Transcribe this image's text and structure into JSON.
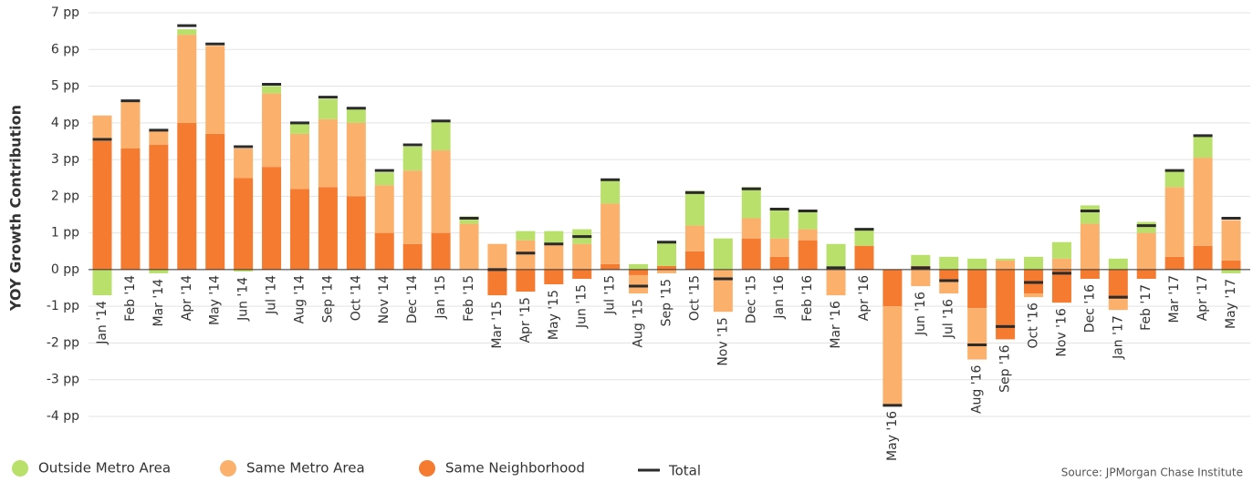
{
  "chart_data": {
    "type": "stacked-bar",
    "y_label": "YOY Growth Contribution",
    "source": "Source:  JPMorgan Chase Institute",
    "categories": [
      "Jan '14",
      "Feb '14",
      "Mar '14",
      "Apr '14",
      "May '14",
      "Jun '14",
      "Jul '14",
      "Aug '14",
      "Sep '14",
      "Oct '14",
      "Nov '14",
      "Dec '14",
      "Jan '15",
      "Feb '15",
      "Mar '15",
      "Apr '15",
      "May '15",
      "Jun '15",
      "Jul '15",
      "Aug '15",
      "Sep '15",
      "Oct '15",
      "Nov '15",
      "Dec '15",
      "Jan '16",
      "Feb '16",
      "Mar '16",
      "Apr '16",
      "May '16",
      "Jun '16",
      "Jul '16",
      "Aug '16",
      "Sep '16",
      "Oct '16",
      "Nov '16",
      "Dec '16",
      "Jan '17",
      "Feb '17",
      "Mar '17",
      "Apr '17",
      "May '17"
    ],
    "series": [
      {
        "name": "Outside Metro Area",
        "color": "#b8e06b",
        "values": [
          -0.7,
          0,
          -0.1,
          0.15,
          0,
          -0.05,
          0.2,
          0.3,
          0.55,
          0.4,
          0.35,
          0.65,
          0.8,
          0.2,
          0,
          0.25,
          0.35,
          0.4,
          0.65,
          0.15,
          0.65,
          0.95,
          0.85,
          0.85,
          0.8,
          0.5,
          0.7,
          0.45,
          0,
          0.3,
          0.35,
          0.3,
          0.05,
          0.35,
          0.45,
          0.5,
          0.3,
          0.3,
          0.45,
          0.6,
          -0.1
        ]
      },
      {
        "name": "Same Metro Area",
        "color": "#fbb06b",
        "values": [
          0.7,
          1.3,
          0.4,
          2.4,
          2.4,
          0.8,
          2.0,
          1.5,
          1.85,
          2.0,
          1.3,
          2.0,
          2.25,
          1.25,
          0.7,
          0.8,
          0.7,
          0.7,
          1.65,
          -0.5,
          -0.1,
          0.7,
          -1.15,
          0.55,
          0.5,
          0.3,
          -0.7,
          0,
          -2.7,
          -0.45,
          -0.35,
          -1.4,
          0.25,
          -0.1,
          0.3,
          1.25,
          -0.3,
          1.0,
          1.9,
          2.4,
          1.1
        ]
      },
      {
        "name": "Same Neighborhood",
        "color": "#f47b30",
        "values": [
          3.5,
          3.3,
          3.4,
          4.0,
          3.7,
          2.5,
          2.8,
          2.2,
          2.25,
          2.0,
          1.0,
          0.7,
          1.0,
          0,
          -0.7,
          -0.6,
          -0.4,
          -0.25,
          0.15,
          -0.15,
          0.1,
          0.5,
          0,
          0.85,
          0.35,
          0.8,
          0,
          0.65,
          -1.0,
          0.1,
          -0.3,
          -1.05,
          -1.9,
          -0.65,
          -0.9,
          -0.25,
          -0.8,
          -0.25,
          0.35,
          0.65,
          0.25
        ]
      }
    ],
    "total": {
      "name": "Total",
      "color": "#2b2b2b",
      "values": [
        3.55,
        4.6,
        3.8,
        6.65,
        6.15,
        3.35,
        5.05,
        4.0,
        4.7,
        4.4,
        2.7,
        3.4,
        4.05,
        1.4,
        0,
        0.45,
        0.7,
        0.9,
        2.45,
        -0.45,
        0.75,
        2.1,
        -0.25,
        2.2,
        1.65,
        1.6,
        0.05,
        1.1,
        -3.7,
        0.05,
        -0.3,
        -2.05,
        -1.55,
        -0.35,
        -0.1,
        1.6,
        -0.75,
        1.2,
        2.7,
        3.65,
        1.4
      ]
    },
    "ylim": [
      -4,
      7
    ],
    "yticks": [
      {
        "value": -4,
        "label": "-4 pp"
      },
      {
        "value": -3,
        "label": "-3 pp"
      },
      {
        "value": -2,
        "label": "-2 pp"
      },
      {
        "value": -1,
        "label": "-1 pp"
      },
      {
        "value": 0,
        "label": "0 pp"
      },
      {
        "value": 1,
        "label": "1 pp"
      },
      {
        "value": 2,
        "label": "2 pp"
      },
      {
        "value": 3,
        "label": "3 pp"
      },
      {
        "value": 4,
        "label": "4 pp"
      },
      {
        "value": 5,
        "label": "5 pp"
      },
      {
        "value": 6,
        "label": "6 pp"
      },
      {
        "value": 7,
        "label": "7 pp"
      }
    ],
    "grid": true
  }
}
